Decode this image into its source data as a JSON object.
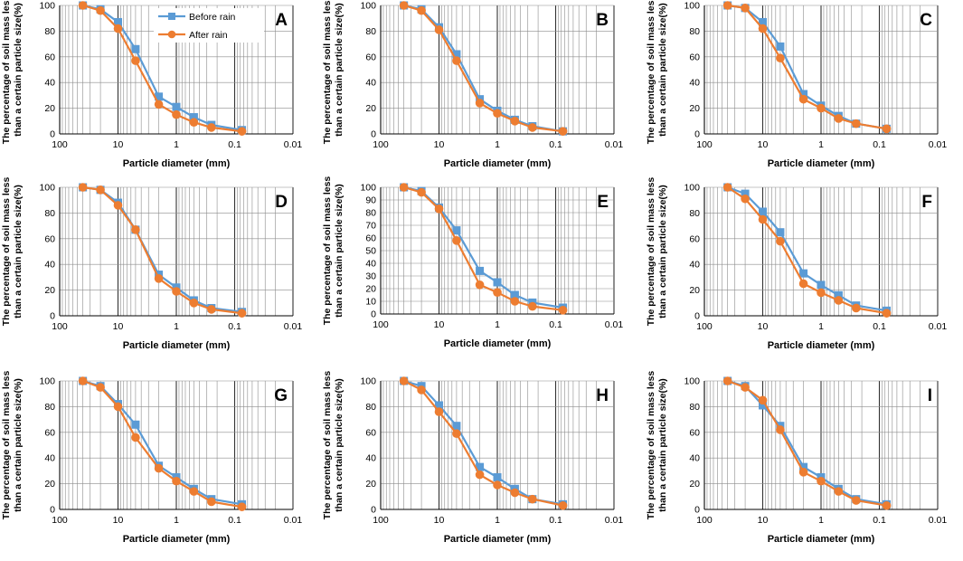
{
  "colors": {
    "before": "#5b9bd5",
    "after": "#ed7d31",
    "grid": "#8c8c8c",
    "axis": "#000000"
  },
  "legend": {
    "before_label": "Before rain",
    "after_label": "After rain"
  },
  "chart_data": [
    {
      "type": "line",
      "panel": "A",
      "xscale": "log",
      "xlim": [
        100,
        0.01
      ],
      "ylim": [
        0,
        100
      ],
      "grid": true,
      "title": "",
      "xlabel": "Particle diameter (mm)",
      "ylabel_line1": "The percentage of soil mass less",
      "ylabel_line2": "than a certain particle size(%)",
      "xticks": [
        "100",
        "10",
        "1",
        "0.1",
        "0.01"
      ],
      "yticks": [
        "0",
        "20",
        "40",
        "60",
        "80",
        "100"
      ],
      "x": [
        40,
        20,
        10,
        5,
        2,
        1,
        0.5,
        0.25,
        0.075
      ],
      "series": [
        {
          "name": "Before rain",
          "values": [
            100,
            97,
            87,
            66,
            29,
            21,
            13,
            7,
            3
          ]
        },
        {
          "name": "After rain",
          "values": [
            100,
            96,
            82,
            57,
            23,
            15,
            9,
            5,
            2
          ]
        }
      ]
    },
    {
      "type": "line",
      "panel": "B",
      "xscale": "log",
      "xlim": [
        100,
        0.01
      ],
      "ylim": [
        0,
        100
      ],
      "grid": true,
      "title": "",
      "xlabel": "Particle diameter (mm)",
      "ylabel_line1": "The percentage of soil mass less",
      "ylabel_line2": "than a certain particle size(%)",
      "xticks": [
        "100",
        "10",
        "1",
        "0.1",
        "0.01"
      ],
      "yticks": [
        "0",
        "20",
        "40",
        "60",
        "80",
        "100"
      ],
      "x": [
        40,
        20,
        10,
        5,
        2,
        1,
        0.5,
        0.25,
        0.075
      ],
      "series": [
        {
          "name": "Before rain",
          "values": [
            100,
            97,
            83,
            62,
            27,
            18,
            11,
            6,
            2
          ]
        },
        {
          "name": "After rain",
          "values": [
            100,
            96,
            81,
            57,
            24,
            16,
            10,
            5,
            2
          ]
        }
      ]
    },
    {
      "type": "line",
      "panel": "C",
      "xscale": "log",
      "xlim": [
        100,
        0.01
      ],
      "ylim": [
        0,
        100
      ],
      "grid": true,
      "title": "",
      "xlabel": "Particle diameter (mm)",
      "ylabel_line1": "The percentage of soil mass less",
      "ylabel_line2": "than a certain particle size(%)",
      "xticks": [
        "100",
        "10",
        "1",
        "0.1",
        "0.01"
      ],
      "yticks": [
        "0",
        "20",
        "40",
        "60",
        "80",
        "100"
      ],
      "x": [
        40,
        20,
        10,
        5,
        2,
        1,
        0.5,
        0.25,
        0.075
      ],
      "series": [
        {
          "name": "Before rain",
          "values": [
            100,
            98,
            87,
            68,
            31,
            22,
            14,
            8,
            4
          ]
        },
        {
          "name": "After rain",
          "values": [
            100,
            98,
            82,
            59,
            27,
            20,
            12,
            8,
            4
          ]
        }
      ]
    },
    {
      "type": "line",
      "panel": "D",
      "xscale": "log",
      "xlim": [
        100,
        0.01
      ],
      "ylim": [
        0,
        100
      ],
      "grid": true,
      "title": "",
      "xlabel": "Particle diameter (mm)",
      "ylabel_line1": "The percentage of soil mass less",
      "ylabel_line2": "than a certain particle size(%)",
      "xticks": [
        "100",
        "10",
        "1",
        "0.1",
        "0.01"
      ],
      "yticks": [
        "0",
        "20",
        "40",
        "60",
        "80",
        "100"
      ],
      "x": [
        40,
        20,
        10,
        5,
        2,
        1,
        0.5,
        0.25,
        0.075
      ],
      "series": [
        {
          "name": "Before rain",
          "values": [
            100,
            98,
            88,
            67,
            32,
            22,
            12,
            6,
            3
          ]
        },
        {
          "name": "After rain",
          "values": [
            100,
            98,
            86,
            67,
            29,
            19,
            10,
            5,
            2
          ]
        }
      ]
    },
    {
      "type": "line",
      "panel": "E",
      "xscale": "log",
      "xlim": [
        100,
        0.01
      ],
      "ylim": [
        0,
        100
      ],
      "grid": true,
      "title": "",
      "xlabel": "Particle diameter (mm)",
      "ylabel_line1": "The percentage of soil mass less",
      "ylabel_line2": "than a certain particle size(%)",
      "xticks": [
        "100",
        "10",
        "1",
        "0.1",
        "0.01"
      ],
      "yticks": [
        "0",
        "10",
        "20",
        "30",
        "40",
        "50",
        "60",
        "70",
        "80",
        "90",
        "100"
      ],
      "x": [
        40,
        20,
        10,
        5,
        2,
        1,
        0.5,
        0.25,
        0.075
      ],
      "series": [
        {
          "name": "Before rain",
          "values": [
            100,
            97,
            84,
            66,
            34,
            25,
            15,
            9,
            5
          ]
        },
        {
          "name": "After rain",
          "values": [
            100,
            96,
            83,
            58,
            23,
            17,
            10,
            6,
            3
          ]
        }
      ]
    },
    {
      "type": "line",
      "panel": "F",
      "xscale": "log",
      "xlim": [
        100,
        0.01
      ],
      "ylim": [
        0,
        100
      ],
      "grid": true,
      "title": "",
      "xlabel": "Particle diameter (mm)",
      "ylabel_line1": "The percentage of soil mass less",
      "ylabel_line2": "than a certain particle size(%)",
      "xticks": [
        "100",
        "10",
        "1",
        "0.1",
        "0.01"
      ],
      "yticks": [
        "0",
        "20",
        "40",
        "60",
        "80",
        "100"
      ],
      "x": [
        40,
        20,
        10,
        5,
        2,
        1,
        0.5,
        0.25,
        0.075
      ],
      "series": [
        {
          "name": "Before rain",
          "values": [
            100,
            95,
            81,
            65,
            33,
            24,
            16,
            8,
            4
          ]
        },
        {
          "name": "After rain",
          "values": [
            100,
            91,
            75,
            58,
            25,
            18,
            12,
            6,
            2
          ]
        }
      ]
    },
    {
      "type": "line",
      "panel": "G",
      "xscale": "log",
      "xlim": [
        100,
        0.01
      ],
      "ylim": [
        0,
        100
      ],
      "grid": true,
      "title": "",
      "xlabel": "Particle diameter (mm)",
      "ylabel_line1": "The percentage of soil mass less",
      "ylabel_line2": "than a certain particle size(%)",
      "xticks": [
        "100",
        "10",
        "1",
        "0.1",
        "0.01"
      ],
      "yticks": [
        "0",
        "20",
        "40",
        "60",
        "80",
        "100"
      ],
      "x": [
        40,
        20,
        10,
        5,
        2,
        1,
        0.5,
        0.25,
        0.075
      ],
      "series": [
        {
          "name": "Before rain",
          "values": [
            100,
            96,
            82,
            66,
            34,
            25,
            16,
            8,
            4
          ]
        },
        {
          "name": "After rain",
          "values": [
            100,
            95,
            80,
            56,
            32,
            22,
            14,
            6,
            2
          ]
        }
      ]
    },
    {
      "type": "line",
      "panel": "H",
      "xscale": "log",
      "xlim": [
        100,
        0.01
      ],
      "ylim": [
        0,
        100
      ],
      "grid": true,
      "title": "",
      "xlabel": "Particle diameter (mm)",
      "ylabel_line1": "The percentage of soil mass less",
      "ylabel_line2": "than a certain particle size(%)",
      "xticks": [
        "100",
        "10",
        "1",
        "0.1",
        "0.01"
      ],
      "yticks": [
        "0",
        "20",
        "40",
        "60",
        "80",
        "100"
      ],
      "x": [
        40,
        20,
        10,
        5,
        2,
        1,
        0.5,
        0.25,
        0.075
      ],
      "series": [
        {
          "name": "Before rain",
          "values": [
            100,
            96,
            81,
            65,
            33,
            25,
            16,
            8,
            4
          ]
        },
        {
          "name": "After rain",
          "values": [
            100,
            93,
            76,
            59,
            27,
            19,
            13,
            8,
            3
          ]
        }
      ]
    },
    {
      "type": "line",
      "panel": "I",
      "xscale": "log",
      "xlim": [
        100,
        0.01
      ],
      "ylim": [
        0,
        100
      ],
      "grid": true,
      "title": "",
      "xlabel": "Particle diameter (mm)",
      "ylabel_line1": "The percentage of soil mass less",
      "ylabel_line2": "than a certain particle size(%)",
      "xticks": [
        "100",
        "10",
        "1",
        "0.1",
        "0.01"
      ],
      "yticks": [
        "0",
        "20",
        "40",
        "60",
        "80",
        "100"
      ],
      "x": [
        40,
        20,
        10,
        5,
        2,
        1,
        0.5,
        0.25,
        0.075
      ],
      "series": [
        {
          "name": "Before rain",
          "values": [
            100,
            96,
            81,
            65,
            33,
            25,
            16,
            8,
            4
          ]
        },
        {
          "name": "After rain",
          "values": [
            100,
            95,
            85,
            62,
            29,
            22,
            14,
            7,
            3
          ]
        }
      ]
    }
  ]
}
